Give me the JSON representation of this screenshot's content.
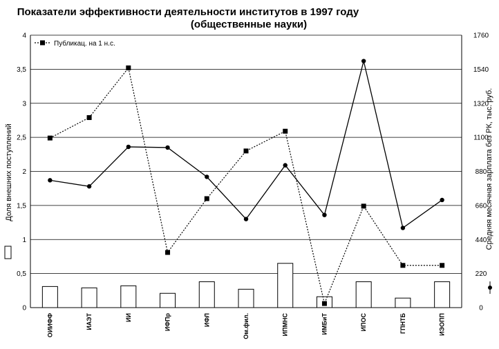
{
  "chart_data": {
    "type": "bar+line",
    "title": "Показатели эффективности деятельности институтов в 1997 году",
    "subtitle": "(общественные науки)",
    "categories": [
      "ОИИФФ",
      "ИАЭТ",
      "ИИ",
      "ИФПр",
      "ИФЛ",
      "Ом.фил.",
      "ИПМНС",
      "ИМБиТ",
      "ИПОС",
      "ГПНТБ",
      "ИЭОПП"
    ],
    "ylabel_left": "Доля внешних поступлений",
    "ylabel_right": "Средняя месячная зарплата без РК, тыс. руб.",
    "ylim_left": [
      0,
      4
    ],
    "yticks_left": [
      "0",
      "0,5",
      "1",
      "1,5",
      "2",
      "2,5",
      "3",
      "3,5",
      "4"
    ],
    "ylim_right": [
      0,
      1760
    ],
    "yticks_right": [
      "0",
      "220",
      "440",
      "660",
      "880",
      "1100",
      "1320",
      "1540",
      "1760"
    ],
    "grid": true,
    "legend_placement": "top-left",
    "series": [
      {
        "name": "",
        "kind": "bar",
        "axis": "left",
        "values": [
          0.31,
          0.29,
          0.32,
          0.21,
          0.38,
          0.27,
          0.65,
          0.16,
          0.38,
          0.14,
          0.38
        ]
      },
      {
        "name": "",
        "kind": "line-solid",
        "axis": "left",
        "values": [
          1.87,
          1.78,
          2.36,
          2.35,
          1.92,
          1.3,
          2.09,
          1.36,
          3.62,
          1.17,
          1.58
        ]
      },
      {
        "name": "Публикац. на 1 н.с.",
        "kind": "line-dashed",
        "axis": "left",
        "values": [
          2.49,
          2.79,
          3.52,
          0.81,
          1.6,
          2.3,
          2.59,
          0.06,
          1.49,
          0.62,
          0.62
        ]
      }
    ]
  }
}
